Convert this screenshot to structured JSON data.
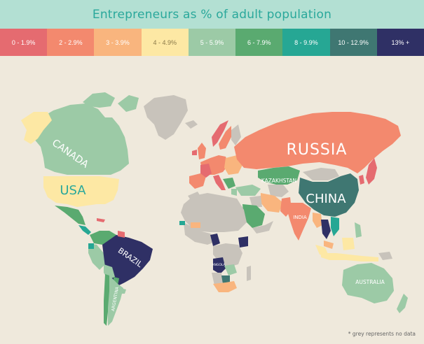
{
  "title": "Entrepreneurs as % of adult population",
  "legend": [
    {
      "label": "0 - 1.9%",
      "color": "#e56b70",
      "text_color": "#ffffff"
    },
    {
      "label": "2 - 2.9%",
      "color": "#f3896e",
      "text_color": "#ffffff"
    },
    {
      "label": "3 - 3.9%",
      "color": "#f9b57e",
      "text_color": "#ffffff"
    },
    {
      "label": "4 - 4.9%",
      "color": "#fde8a4",
      "text_color": "#8a7a4a"
    },
    {
      "label": "5 - 5.9%",
      "color": "#9ccaa6",
      "text_color": "#ffffff"
    },
    {
      "label": "6 - 7.9%",
      "color": "#5aaa70",
      "text_color": "#ffffff"
    },
    {
      "label": "8 - 9.9%",
      "color": "#26a794",
      "text_color": "#ffffff"
    },
    {
      "label": "10 - 12.9%",
      "color": "#3f7772",
      "text_color": "#ffffff"
    },
    {
      "label": "13% +",
      "color": "#2f3065",
      "text_color": "#ffffff"
    }
  ],
  "no_data_color": "#c8c3bb",
  "background_color": "#efe9dc",
  "country_labels": {
    "russia": "RUSSIA",
    "canada": "CANADA",
    "usa": "USA",
    "china": "CHINA",
    "kazakhstan": "KAZAKHSTAN",
    "india": "INDIA",
    "brazil": "BRAZIL",
    "argentina": "ARGENTINA",
    "angola": "ANGOLA",
    "australia": "AUSTRALIA"
  },
  "footnote": "* grey represents no data"
}
